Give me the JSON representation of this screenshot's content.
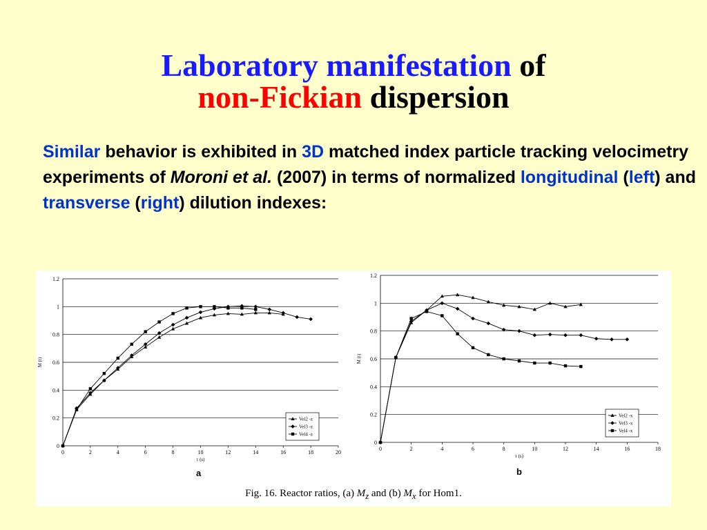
{
  "slide": {
    "title_line1_a": "Laboratory manifestation",
    "title_line1_b": "of",
    "title_line2_a": "non-Fickian",
    "title_line2_b": "dispersion",
    "body": {
      "p1": "Similar",
      "p2": " behavior is exhibited in ",
      "p3": "3D",
      "p4": " matched index particle tracking velocimetry experiments of ",
      "p5": "Moroni et al.",
      "p6": " (2007) in terms of normalized ",
      "p7": "longitudinal",
      "p8": " (",
      "p9": "left",
      "p10": ") and ",
      "p11": "transverse",
      "p12": " (",
      "p13": "right",
      "p14": ") dilution indexes:"
    },
    "caption_a": "Fig. 16.  Reactor ratios, (a) ",
    "caption_b": "M",
    "caption_c": "z",
    "caption_d": " and (b) ",
    "caption_e": "M",
    "caption_f": "x",
    "caption_g": " for Hom1."
  },
  "colors": {
    "background": "#ffffcc",
    "title_blue": "#1a1aff",
    "title_red": "#ff0000",
    "text_blue": "#0033cc"
  },
  "chart_data": [
    {
      "type": "line",
      "panel_label": "a",
      "xlabel": "τ (s)",
      "ylabel": "M (t)",
      "xlim": [
        0,
        20
      ],
      "ylim": [
        0,
        1.2
      ],
      "xticks": [
        0,
        2,
        4,
        6,
        8,
        10,
        12,
        14,
        16,
        18,
        20
      ],
      "yticks": [
        0,
        0.2,
        0.4,
        0.6,
        0.8,
        1,
        1.2
      ],
      "ytick_labels": [
        "0",
        "0.2",
        "0.4",
        "0.6",
        "0.8",
        "1",
        "1.2"
      ],
      "grid": "horizontal",
      "legend_position": "bottom-right",
      "series": [
        {
          "name": "Vel2 -z",
          "marker": "triangle",
          "x": [
            0,
            1,
            2,
            3,
            4,
            5,
            6,
            7,
            8,
            9,
            10,
            11,
            12,
            13,
            14,
            15,
            16
          ],
          "y": [
            0,
            0.26,
            0.37,
            0.47,
            0.55,
            0.64,
            0.71,
            0.78,
            0.84,
            0.88,
            0.92,
            0.94,
            0.95,
            0.945,
            0.955,
            0.955,
            0.945
          ]
        },
        {
          "name": "Vel3 -z",
          "marker": "diamond",
          "x": [
            0,
            1,
            2,
            3,
            4,
            5,
            6,
            7,
            8,
            9,
            10,
            11,
            12,
            13,
            14,
            15,
            16,
            17,
            18
          ],
          "y": [
            0,
            0.27,
            0.38,
            0.47,
            0.56,
            0.65,
            0.73,
            0.81,
            0.87,
            0.92,
            0.96,
            0.985,
            1.0,
            1.005,
            1.0,
            0.98,
            0.955,
            0.925,
            0.91
          ]
        },
        {
          "name": "Vel4 -z",
          "marker": "square",
          "x": [
            0,
            1,
            2,
            3,
            4,
            5,
            6,
            7,
            8,
            9,
            10,
            11,
            12,
            13,
            14
          ],
          "y": [
            0,
            0.26,
            0.41,
            0.52,
            0.63,
            0.73,
            0.82,
            0.89,
            0.95,
            0.99,
            1.0,
            1.0,
            0.99,
            0.99,
            0.98
          ]
        }
      ]
    },
    {
      "type": "line",
      "panel_label": "b",
      "xlabel": "τ (s)",
      "ylabel": "M (t)",
      "xlim": [
        0,
        18
      ],
      "ylim": [
        0,
        1.2
      ],
      "xticks": [
        0,
        2,
        4,
        6,
        8,
        10,
        12,
        14,
        16,
        18
      ],
      "yticks": [
        0,
        0.2,
        0.4,
        0.6,
        0.8,
        1,
        1.2
      ],
      "ytick_labels": [
        "0",
        "0.2",
        "0.4",
        "0.6",
        "0.8",
        "1",
        "1.2"
      ],
      "grid": "horizontal",
      "legend_position": "bottom-right",
      "series": [
        {
          "name": "Vel2 -x",
          "marker": "triangle",
          "x": [
            0,
            1,
            2,
            3,
            4,
            5,
            6,
            7,
            8,
            9,
            10,
            11,
            12,
            13
          ],
          "y": [
            0,
            0.61,
            0.86,
            0.95,
            1.05,
            1.06,
            1.04,
            1.01,
            0.985,
            0.975,
            0.955,
            1.0,
            0.975,
            0.99
          ]
        },
        {
          "name": "Vel3 -x",
          "marker": "diamond",
          "x": [
            0,
            1,
            2,
            3,
            4,
            5,
            6,
            7,
            8,
            9,
            10,
            11,
            12,
            13,
            14,
            15,
            16
          ],
          "y": [
            0,
            0.61,
            0.87,
            0.95,
            1.0,
            0.96,
            0.89,
            0.855,
            0.81,
            0.8,
            0.77,
            0.775,
            0.77,
            0.77,
            0.745,
            0.74,
            0.74
          ]
        },
        {
          "name": "Vel4 -x",
          "marker": "square",
          "x": [
            0,
            1,
            2,
            3,
            4,
            5,
            6,
            7,
            8,
            9,
            10,
            11,
            12,
            13
          ],
          "y": [
            0,
            0.61,
            0.89,
            0.94,
            0.91,
            0.78,
            0.68,
            0.63,
            0.6,
            0.585,
            0.57,
            0.57,
            0.55,
            0.545
          ]
        }
      ]
    }
  ]
}
